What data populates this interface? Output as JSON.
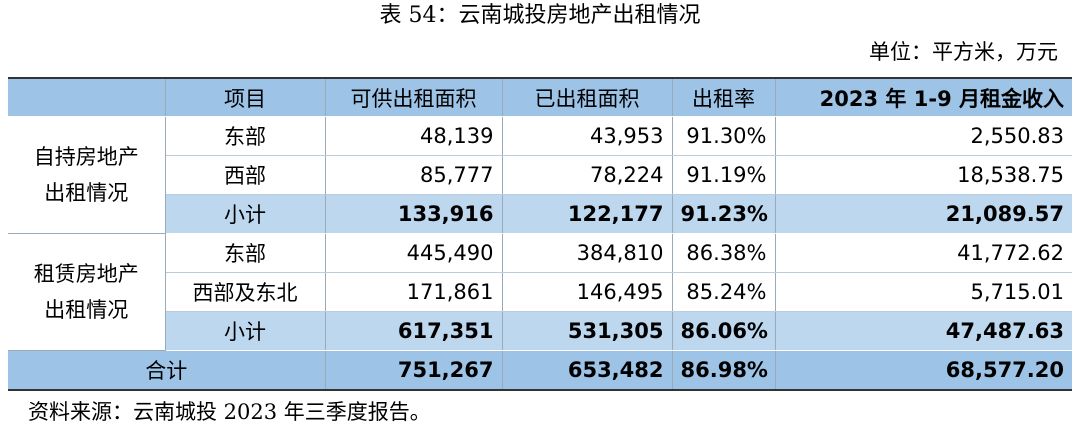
{
  "title": "表 54：云南城投房地产出租情况",
  "unit": "单位：平方米，万元",
  "table": {
    "header": [
      "项目",
      "可供出租面积",
      "已出租面积",
      "出租率",
      "2023 年 1-9 月租金收入"
    ],
    "groups": [
      {
        "label": "自持房地产出租情况",
        "rows": [
          [
            "东部",
            "48,139",
            "43,953",
            "91.30%",
            "2,550.83"
          ],
          [
            "西部",
            "85,777",
            "78,224",
            "91.19%",
            "18,538.75"
          ],
          [
            "小计",
            "133,916",
            "122,177",
            "91.23%",
            "21,089.57"
          ]
        ]
      },
      {
        "label": "租赁房地产出租情况",
        "rows": [
          [
            "东部",
            "445,490",
            "384,810",
            "86.38%",
            "41,772.62"
          ],
          [
            "西部及东北",
            "171,861",
            "146,495",
            "85.24%",
            "5,715.01"
          ],
          [
            "小计",
            "617,351",
            "531,305",
            "86.06%",
            "47,487.63"
          ]
        ]
      }
    ],
    "total": [
      "合计",
      "751,267",
      "653,482",
      "86.98%",
      "68,577.20"
    ]
  },
  "source": "资料来源：云南城投 2023 年三季度报告。"
}
